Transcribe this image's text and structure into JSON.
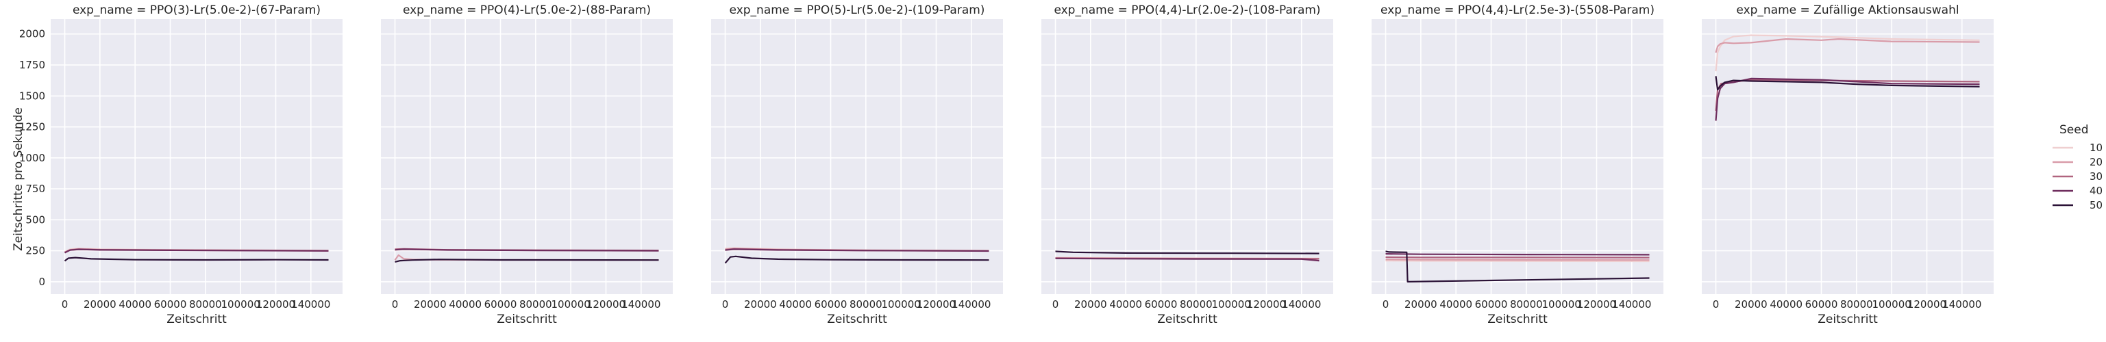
{
  "chart_data": {
    "type": "line",
    "ylabel": "Zeitschritte pro Sekunde",
    "xlabel": "Zeitschritt",
    "ylim": [
      -100,
      2120
    ],
    "xlim": [
      -8000,
      158000
    ],
    "yticks": [
      0,
      250,
      500,
      750,
      1000,
      1250,
      1500,
      1750,
      2000
    ],
    "xticks": [
      0,
      20000,
      40000,
      60000,
      80000,
      100000,
      120000,
      140000
    ],
    "grid": true,
    "background": "#eaeaf2",
    "legend": {
      "title": "Seed",
      "placement": "right",
      "entries": [
        {
          "label": "10",
          "color": "#efcfd0"
        },
        {
          "label": "20",
          "color": "#d99ca9"
        },
        {
          "label": "30",
          "color": "#b0647f"
        },
        {
          "label": "40",
          "color": "#6f2d5e"
        },
        {
          "label": "50",
          "color": "#2b1237"
        }
      ]
    },
    "panels": [
      {
        "title": "exp_name = PPO(3)-Lr(5.0e-2)-(67-Param)",
        "series": [
          {
            "seed": "10",
            "x": [
              0,
              3000,
              8000,
              20000,
              60000,
              100000,
              150000
            ],
            "y": [
              240,
              262,
              268,
              262,
              258,
              255,
              252
            ]
          },
          {
            "seed": "20",
            "x": [
              0,
              3000,
              8000,
              20000,
              60000,
              100000,
              150000
            ],
            "y": [
              238,
              258,
              265,
              260,
              256,
              254,
              251
            ]
          },
          {
            "seed": "30",
            "x": [
              0,
              3000,
              8000,
              20000,
              60000,
              100000,
              150000
            ],
            "y": [
              236,
              256,
              262,
              258,
              255,
              253,
              250
            ]
          },
          {
            "seed": "40",
            "x": [
              0,
              3000,
              8000,
              20000,
              60000,
              100000,
              150000
            ],
            "y": [
              234,
              255,
              261,
              257,
              254,
              252,
              249
            ]
          },
          {
            "seed": "50",
            "x": [
              0,
              2000,
              6000,
              15000,
              40000,
              80000,
              120000,
              150000
            ],
            "y": [
              168,
              190,
              195,
              185,
              178,
              176,
              178,
              176
            ]
          }
        ]
      },
      {
        "title": "exp_name = PPO(4)-Lr(5.0e-2)-(88-Param)",
        "series": [
          {
            "seed": "10",
            "x": [
              0,
              5000,
              30000,
              80000,
              150000
            ],
            "y": [
              255,
              262,
              258,
              254,
              252
            ]
          },
          {
            "seed": "20",
            "x": [
              0,
              2000,
              5000,
              10000,
              20000,
              60000,
              150000
            ],
            "y": [
              175,
              215,
              185,
              180,
              178,
              176,
              175
            ]
          },
          {
            "seed": "30",
            "x": [
              0,
              5000,
              30000,
              80000,
              150000
            ],
            "y": [
              262,
              265,
              258,
              255,
              253
            ]
          },
          {
            "seed": "40",
            "x": [
              0,
              5000,
              30000,
              80000,
              150000
            ],
            "y": [
              258,
              262,
              256,
              253,
              250
            ]
          },
          {
            "seed": "50",
            "x": [
              0,
              3000,
              10000,
              25000,
              60000,
              150000
            ],
            "y": [
              160,
              170,
              175,
              180,
              176,
              175
            ]
          }
        ]
      },
      {
        "title": "exp_name = PPO(5)-Lr(5.0e-2)-(109-Param)",
        "series": [
          {
            "seed": "10",
            "x": [
              0,
              5000,
              30000,
              80000,
              150000
            ],
            "y": [
              268,
              272,
              262,
              255,
              252
            ]
          },
          {
            "seed": "20",
            "x": [
              0,
              5000,
              30000,
              80000,
              150000
            ],
            "y": [
              262,
              268,
              260,
              254,
              250
            ]
          },
          {
            "seed": "30",
            "x": [
              0,
              5000,
              30000,
              80000,
              150000
            ],
            "y": [
              258,
              265,
              258,
              253,
              249
            ]
          },
          {
            "seed": "40",
            "x": [
              0,
              5000,
              30000,
              80000,
              150000
            ],
            "y": [
              255,
              262,
              256,
              252,
              248
            ]
          },
          {
            "seed": "50",
            "x": [
              0,
              3000,
              6000,
              15000,
              30000,
              60000,
              100000,
              150000
            ],
            "y": [
              150,
              200,
              205,
              190,
              182,
              178,
              176,
              175
            ]
          }
        ]
      },
      {
        "title": "exp_name = PPO(4,4)-Lr(2.0e-2)-(108-Param)",
        "series": [
          {
            "seed": "10",
            "x": [
              0,
              30000,
              80000,
              150000
            ],
            "y": [
              195,
              192,
              190,
              188
            ]
          },
          {
            "seed": "20",
            "x": [
              0,
              30000,
              80000,
              150000
            ],
            "y": [
              192,
              190,
              188,
              186
            ]
          },
          {
            "seed": "30",
            "x": [
              0,
              30000,
              80000,
              150000
            ],
            "y": [
              190,
              188,
              186,
              185
            ]
          },
          {
            "seed": "40",
            "x": [
              0,
              30000,
              80000,
              140000,
              150000
            ],
            "y": [
              188,
              186,
              184,
              183,
              170
            ]
          },
          {
            "seed": "50",
            "x": [
              0,
              10000,
              40000,
              100000,
              150000
            ],
            "y": [
              245,
              238,
              232,
              230,
              228
            ]
          }
        ]
      },
      {
        "title": "exp_name = PPO(4,4)-Lr(2.5e-3)-(5508-Param)",
        "series": [
          {
            "seed": "10",
            "x": [
              0,
              20000,
              80000,
              150000
            ],
            "y": [
              170,
              168,
              166,
              165
            ]
          },
          {
            "seed": "20",
            "x": [
              0,
              20000,
              80000,
              150000
            ],
            "y": [
              180,
              178,
              176,
              175
            ]
          },
          {
            "seed": "30",
            "x": [
              0,
              20000,
              80000,
              150000
            ],
            "y": [
              198,
              196,
              196,
              195
            ]
          },
          {
            "seed": "40",
            "x": [
              0,
              20000,
              80000,
              150000
            ],
            "y": [
              225,
              222,
              220,
              218
            ]
          },
          {
            "seed": "50",
            "x": [
              0,
              2000,
              12000,
              12500,
              80000,
              150000
            ],
            "y": [
              245,
              240,
              238,
              0,
              15,
              30
            ]
          }
        ]
      },
      {
        "title": "exp_name = Zufällige Aktionsauswahl",
        "series": [
          {
            "seed": "10",
            "x": [
              0,
              1000,
              2500,
              5000,
              10000,
              20000,
              40000,
              70000,
              100000,
              150000
            ],
            "y": [
              1700,
              1850,
              1900,
              1950,
              1980,
              1990,
              1985,
              1975,
              1960,
              1950
            ]
          },
          {
            "seed": "20",
            "x": [
              0,
              1000,
              2500,
              5000,
              10000,
              20000,
              40000,
              60000,
              70000,
              100000,
              150000
            ],
            "y": [
              1850,
              1900,
              1920,
              1930,
              1925,
              1930,
              1960,
              1950,
              1960,
              1940,
              1935
            ]
          },
          {
            "seed": "30",
            "x": [
              0,
              1000,
              3000,
              8000,
              20000,
              60000,
              100000,
              150000
            ],
            "y": [
              1380,
              1550,
              1600,
              1610,
              1630,
              1625,
              1620,
              1615
            ]
          },
          {
            "seed": "40",
            "x": [
              0,
              1000,
              2500,
              5000,
              10000,
              20000,
              60000,
              100000,
              150000
            ],
            "y": [
              1300,
              1480,
              1560,
              1600,
              1610,
              1640,
              1630,
              1600,
              1595
            ]
          },
          {
            "seed": "50",
            "x": [
              0,
              1000,
              2500,
              5000,
              10000,
              20000,
              40000,
              60000,
              80000,
              100000,
              150000
            ],
            "y": [
              1660,
              1550,
              1580,
              1610,
              1625,
              1620,
              1615,
              1610,
              1595,
              1585,
              1575
            ]
          }
        ]
      }
    ]
  }
}
